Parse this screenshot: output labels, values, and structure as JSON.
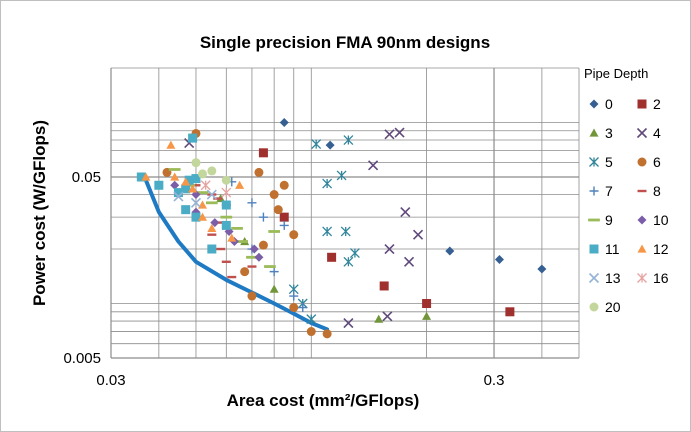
{
  "chart_data": {
    "type": "scatter",
    "title": "Single precision FMA 90nm designs",
    "xlabel": "Area cost (mm²/GFlops)",
    "ylabel": "Power cost (W/GFlops)",
    "x_scale": "log",
    "y_scale": "log",
    "xlim": [
      0.03,
      0.5
    ],
    "ylim": [
      0.005,
      0.2
    ],
    "x_ticks": [
      0.03,
      0.3
    ],
    "x_tick_labels": [
      "0.03",
      "0.3"
    ],
    "y_ticks": [
      0.005,
      0.05
    ],
    "y_tick_labels": [
      "0.005",
      "0.05"
    ],
    "grid": true,
    "legend": {
      "title": "Pipe Depth",
      "placement": "right"
    },
    "series": [
      {
        "name": "0",
        "marker": "diamond",
        "color": "#376092",
        "points": [
          [
            0.085,
            0.1
          ],
          [
            0.112,
            0.075
          ],
          [
            0.23,
            0.0195
          ],
          [
            0.31,
            0.0175
          ],
          [
            0.4,
            0.0155
          ]
        ]
      },
      {
        "name": "2",
        "marker": "square",
        "color": "#a0302e",
        "points": [
          [
            0.075,
            0.068
          ],
          [
            0.085,
            0.03
          ],
          [
            0.113,
            0.018
          ],
          [
            0.155,
            0.0125
          ],
          [
            0.2,
            0.01
          ],
          [
            0.33,
            0.009
          ]
        ]
      },
      {
        "name": "3",
        "marker": "triangle",
        "color": "#71963a",
        "points": [
          [
            0.058,
            0.038
          ],
          [
            0.067,
            0.022
          ],
          [
            0.08,
            0.012
          ],
          [
            0.15,
            0.0082
          ],
          [
            0.2,
            0.0085
          ]
        ]
      },
      {
        "name": "4",
        "marker": "x",
        "color": "#604a7b",
        "points": [
          [
            0.048,
            0.077
          ],
          [
            0.145,
            0.058
          ],
          [
            0.16,
            0.086
          ],
          [
            0.17,
            0.088
          ],
          [
            0.176,
            0.032
          ],
          [
            0.19,
            0.024
          ],
          [
            0.18,
            0.017
          ],
          [
            0.16,
            0.02
          ],
          [
            0.158,
            0.0085
          ],
          [
            0.125,
            0.0078
          ]
        ]
      },
      {
        "name": "5",
        "marker": "star",
        "color": "#31859b",
        "points": [
          [
            0.103,
            0.076
          ],
          [
            0.125,
            0.08
          ],
          [
            0.11,
            0.046
          ],
          [
            0.12,
            0.051
          ],
          [
            0.11,
            0.025
          ],
          [
            0.123,
            0.025
          ],
          [
            0.125,
            0.017
          ],
          [
            0.13,
            0.019
          ],
          [
            0.09,
            0.012
          ],
          [
            0.095,
            0.01
          ],
          [
            0.1,
            0.0082
          ]
        ]
      },
      {
        "name": "6",
        "marker": "circle",
        "color": "#c0712f",
        "points": [
          [
            0.042,
            0.053
          ],
          [
            0.05,
            0.087
          ],
          [
            0.073,
            0.053
          ],
          [
            0.085,
            0.045
          ],
          [
            0.08,
            0.04
          ],
          [
            0.082,
            0.033
          ],
          [
            0.09,
            0.024
          ],
          [
            0.075,
            0.021
          ],
          [
            0.067,
            0.015
          ],
          [
            0.07,
            0.011
          ],
          [
            0.09,
            0.0095
          ],
          [
            0.1,
            0.007
          ],
          [
            0.11,
            0.0068
          ]
        ]
      },
      {
        "name": "7",
        "marker": "plus",
        "color": "#4f81bd",
        "points": [
          [
            0.062,
            0.047
          ],
          [
            0.07,
            0.036
          ],
          [
            0.075,
            0.03
          ],
          [
            0.085,
            0.027
          ],
          [
            0.07,
            0.02
          ],
          [
            0.08,
            0.015
          ],
          [
            0.09,
            0.011
          ],
          [
            0.095,
            0.0095
          ]
        ]
      },
      {
        "name": "8",
        "marker": "dash",
        "color": "#c0504d",
        "points": [
          [
            0.05,
            0.045
          ],
          [
            0.055,
            0.04
          ],
          [
            0.057,
            0.038
          ],
          [
            0.06,
            0.035
          ],
          [
            0.057,
            0.028
          ],
          [
            0.055,
            0.024
          ],
          [
            0.058,
            0.02
          ],
          [
            0.06,
            0.017
          ],
          [
            0.062,
            0.014
          ],
          [
            0.07,
            0.016
          ]
        ]
      },
      {
        "name": "9",
        "marker": "bar",
        "color": "#9bbb59",
        "points": [
          [
            0.044,
            0.055
          ],
          [
            0.048,
            0.045
          ],
          [
            0.052,
            0.041
          ],
          [
            0.055,
            0.036
          ],
          [
            0.06,
            0.03
          ],
          [
            0.064,
            0.026
          ],
          [
            0.066,
            0.022
          ],
          [
            0.07,
            0.018
          ],
          [
            0.078,
            0.016
          ],
          [
            0.08,
            0.025
          ]
        ]
      },
      {
        "name": "10",
        "marker": "diamond",
        "color": "#7b5ea7",
        "points": [
          [
            0.044,
            0.045
          ],
          [
            0.05,
            0.04
          ],
          [
            0.05,
            0.032
          ],
          [
            0.056,
            0.028
          ],
          [
            0.061,
            0.025
          ],
          [
            0.063,
            0.022
          ],
          [
            0.071,
            0.02
          ],
          [
            0.073,
            0.018
          ]
        ]
      },
      {
        "name": "11",
        "marker": "square",
        "color": "#4bacc6",
        "points": [
          [
            0.036,
            0.05
          ],
          [
            0.04,
            0.045
          ],
          [
            0.045,
            0.041
          ],
          [
            0.047,
            0.043
          ],
          [
            0.048,
            0.048
          ],
          [
            0.05,
            0.049
          ],
          [
            0.047,
            0.033
          ],
          [
            0.05,
            0.03
          ],
          [
            0.055,
            0.02
          ],
          [
            0.06,
            0.027
          ],
          [
            0.06,
            0.035
          ],
          [
            0.049,
            0.082
          ]
        ]
      },
      {
        "name": "12",
        "marker": "triangle",
        "color": "#f79646",
        "points": [
          [
            0.037,
            0.05
          ],
          [
            0.043,
            0.075
          ],
          [
            0.044,
            0.05
          ],
          [
            0.047,
            0.047
          ],
          [
            0.049,
            0.043
          ],
          [
            0.052,
            0.035
          ],
          [
            0.055,
            0.026
          ],
          [
            0.062,
            0.023
          ],
          [
            0.065,
            0.045
          ],
          [
            0.052,
            0.03
          ]
        ]
      },
      {
        "name": "13",
        "marker": "x",
        "color": "#95b3d7",
        "points": [
          [
            0.045,
            0.039
          ],
          [
            0.05,
            0.036
          ],
          [
            0.055,
            0.04
          ]
        ]
      },
      {
        "name": "16",
        "marker": "star",
        "color": "#e6a3a0",
        "points": [
          [
            0.053,
            0.045
          ],
          [
            0.06,
            0.041
          ]
        ]
      },
      {
        "name": "20",
        "marker": "circle",
        "color": "#c3d69b",
        "points": [
          [
            0.05,
            0.06
          ],
          [
            0.052,
            0.052
          ],
          [
            0.055,
            0.054
          ],
          [
            0.06,
            0.048
          ]
        ]
      }
    ],
    "pareto_frontier": {
      "color": "#1f7ac4",
      "points": [
        [
          0.037,
          0.048
        ],
        [
          0.04,
          0.032
        ],
        [
          0.045,
          0.022
        ],
        [
          0.05,
          0.017
        ],
        [
          0.06,
          0.0135
        ],
        [
          0.07,
          0.0115
        ],
        [
          0.08,
          0.01
        ],
        [
          0.09,
          0.0088
        ],
        [
          0.1,
          0.0078
        ],
        [
          0.11,
          0.0072
        ]
      ]
    }
  }
}
